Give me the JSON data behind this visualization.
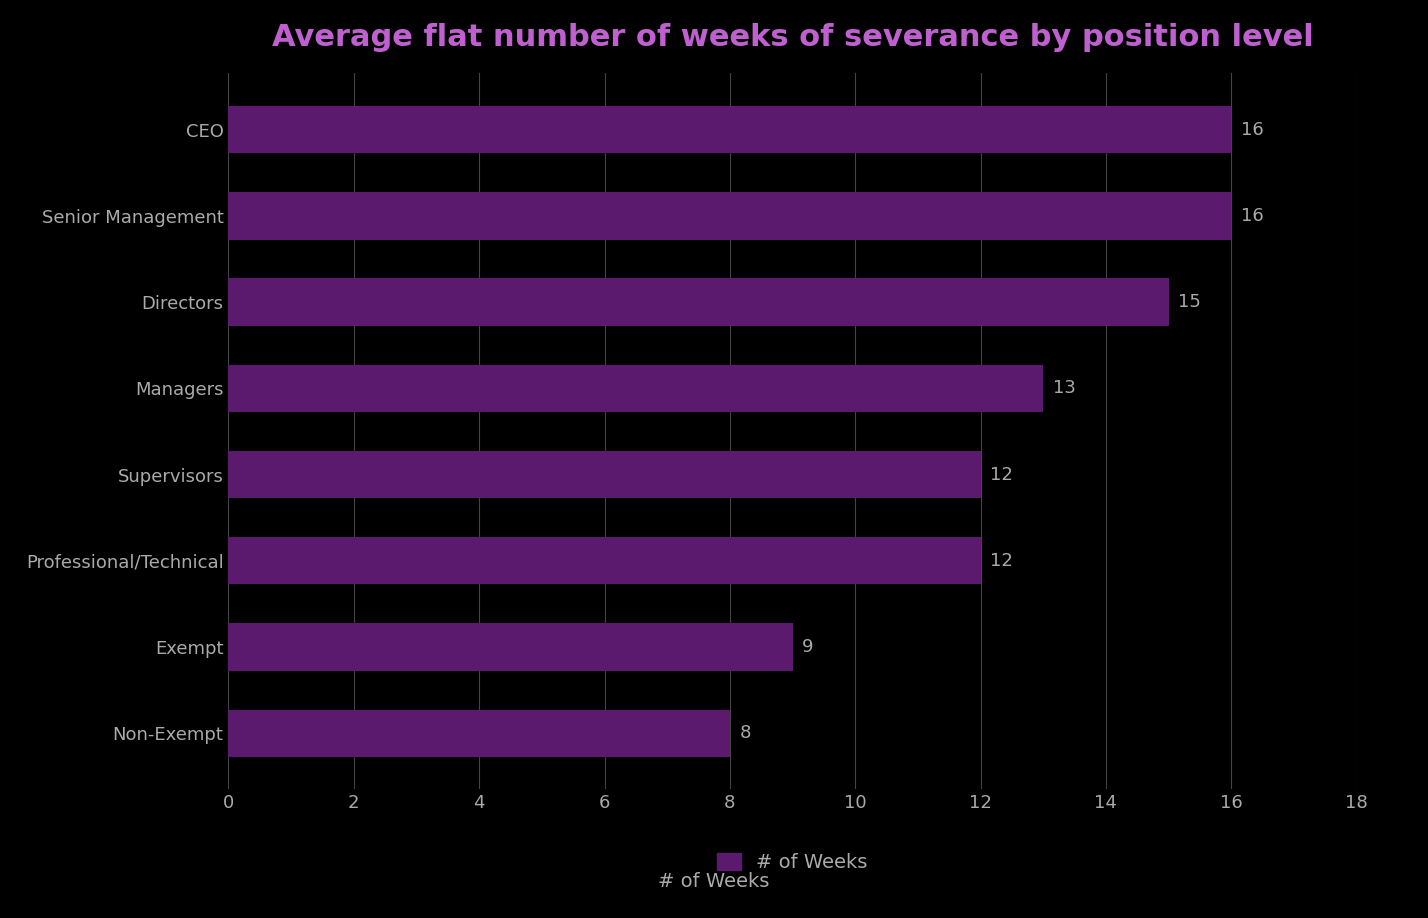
{
  "title": "Average flat number of weeks of severance by position level",
  "categories": [
    "Non-Exempt",
    "Exempt",
    "Professional/Technical",
    "Supervisors",
    "Managers",
    "Directors",
    "Senior Management",
    "CEO"
  ],
  "values": [
    8,
    9,
    12,
    12,
    13,
    15,
    16,
    16
  ],
  "bar_color": "#5b1a6e",
  "background_color": "#000000",
  "title_color": "#c060d0",
  "label_color": "#aaaaaa",
  "value_label_color": "#aaaaaa",
  "grid_color": "#444444",
  "xlabel": "# of Weeks",
  "xlabel_color": "#aaaaaa",
  "xlim": [
    0,
    18
  ],
  "xticks": [
    0,
    2,
    4,
    6,
    8,
    10,
    12,
    14,
    16,
    18
  ],
  "bar_height": 0.55,
  "title_fontsize": 22,
  "label_fontsize": 13,
  "value_fontsize": 13,
  "tick_fontsize": 13,
  "xlabel_fontsize": 14,
  "legend_square_color": "#5b1a6e",
  "legend_text": "# of Weeks",
  "legend_text_color": "#aaaaaa"
}
